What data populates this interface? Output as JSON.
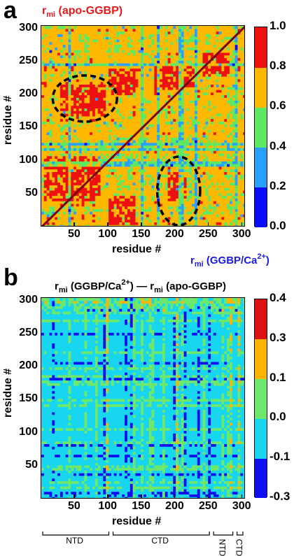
{
  "panel_a": {
    "letter": "a",
    "title_r": "r",
    "title_sub": "mi",
    "title_rest": "(apo-GGBP)",
    "corner_r": "r",
    "corner_sub": "mi",
    "corner_rest_1": "(GGBP/Ca",
    "corner_sup": "2+",
    "corner_rest_2": ")",
    "xlabel": "residue #",
    "ylabel": "residue #"
  },
  "panel_b": {
    "letter": "b",
    "title_r1": "r",
    "title_sub1": "mi",
    "title_mid1": "(GGBP/Ca",
    "title_sup": "2+",
    "title_mid2": ") — r",
    "title_sub2": "mi",
    "title_rest": "(apo-GGBP)",
    "xlabel": "residue #",
    "ylabel": "residue #",
    "domains": [
      "NTD",
      "CTD",
      "NTD",
      "CTD"
    ]
  },
  "colors": {
    "a": [
      "#0a0aff",
      "#2aa0ff",
      "#5ee863",
      "#ffb800",
      "#ee1111"
    ],
    "b": [
      "#0e0ef0",
      "#18d6f0",
      "#6ee86a",
      "#ffb400",
      "#dd1111"
    ],
    "diagonal": "#7a0010",
    "ellipse": "#000000"
  },
  "chart_data": [
    {
      "type": "heatmap",
      "title": "r_mi (apo-GGBP) / r_mi (GGBP/Ca2+)",
      "xlabel": "residue #",
      "ylabel": "residue #",
      "xlim": [
        0,
        305
      ],
      "ylim": [
        0,
        305
      ],
      "x_ticks": [
        50,
        100,
        150,
        200,
        250,
        300
      ],
      "y_ticks": [
        50,
        100,
        150,
        200,
        250,
        300
      ],
      "colorbar": {
        "bounds": [
          0.0,
          0.2,
          0.4,
          0.6,
          0.8,
          1.0
        ],
        "labels": [
          "0.0",
          "0.2",
          "0.4",
          "0.6",
          "0.8",
          "1.0"
        ]
      },
      "dominant_value_band": [
        0.6,
        0.8
      ],
      "hotspots": [
        {
          "x": [
            30,
            95
          ],
          "y": [
            170,
            215
          ],
          "band": [
            0.8,
            1.0
          ]
        },
        {
          "x": [
            100,
            145
          ],
          "y": [
            200,
            240
          ],
          "band": [
            0.8,
            1.0
          ]
        },
        {
          "x": [
            170,
            230
          ],
          "y": [
            210,
            250
          ],
          "band": [
            0.8,
            1.0
          ]
        },
        {
          "x": [
            240,
            280
          ],
          "y": [
            230,
            265
          ],
          "band": [
            0.8,
            1.0
          ]
        },
        {
          "x": [
            5,
            90
          ],
          "y": [
            40,
            110
          ],
          "band": [
            0.8,
            1.0
          ]
        },
        {
          "x": [
            100,
            140
          ],
          "y": [
            5,
            50
          ],
          "band": [
            0.8,
            1.0
          ]
        },
        {
          "x": [
            190,
            215
          ],
          "y": [
            40,
            85
          ],
          "band": [
            0.8,
            1.0
          ]
        }
      ],
      "highlighted_regions": [
        {
          "center": [
            65,
            195
          ],
          "radii": [
            48,
            35
          ]
        },
        {
          "center": [
            205,
            55
          ],
          "radii": [
            32,
            52
          ]
        }
      ]
    },
    {
      "type": "heatmap",
      "title": "r_mi (GGBP/Ca2+) — r_mi (apo-GGBP)",
      "xlabel": "residue #",
      "ylabel": "residue #",
      "xlim": [
        0,
        305
      ],
      "ylim": [
        0,
        305
      ],
      "x_ticks": [
        50,
        100,
        150,
        200,
        250,
        300
      ],
      "y_ticks": [
        50,
        100,
        150,
        200,
        250,
        300
      ],
      "colorbar": {
        "bounds": [
          -0.3,
          -0.1,
          0.0,
          0.1,
          0.3,
          0.4
        ],
        "labels": [
          "-0.3",
          "-0.1",
          "0.0",
          "0.1",
          "0.3",
          "0.4"
        ]
      },
      "dominant_value_band": [
        -0.1,
        0.0
      ],
      "domains": [
        {
          "label": "NTD",
          "range": [
            0,
            105
          ]
        },
        {
          "label": "CTD",
          "range": [
            105,
            255
          ]
        },
        {
          "label": "NTD",
          "range": [
            255,
            290
          ]
        },
        {
          "label": "CTD",
          "range": [
            290,
            305
          ]
        }
      ]
    }
  ]
}
